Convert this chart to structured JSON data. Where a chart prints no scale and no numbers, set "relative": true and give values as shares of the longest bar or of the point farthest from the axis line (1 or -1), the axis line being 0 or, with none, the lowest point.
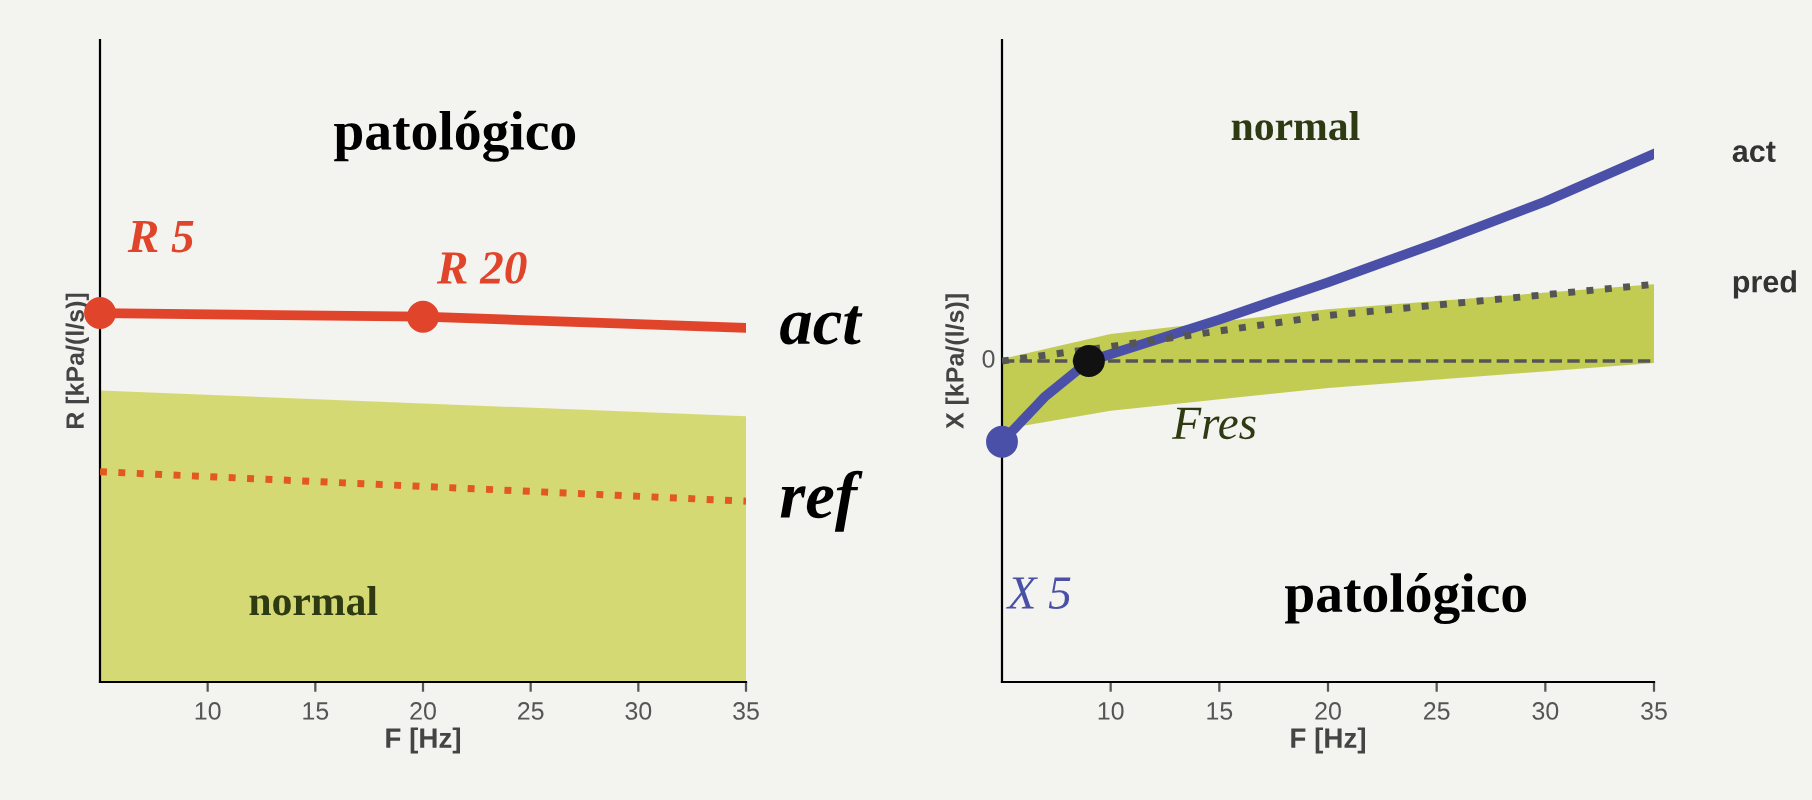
{
  "chart_data": [
    {
      "type": "line",
      "relative": true,
      "xlabel": "F [Hz]",
      "ylabel": "R [kPa/(l/s)]",
      "xlim": [
        5,
        35
      ],
      "xticks": [
        10,
        15,
        20,
        25,
        30,
        35
      ],
      "legend": false,
      "grid": false,
      "series": [
        {
          "name": "act",
          "color": "#e0452b",
          "x": [
            5,
            20,
            35
          ],
          "values": [
            1,
            0.99,
            0.96
          ],
          "line_style": "solid"
        },
        {
          "name": "ref",
          "color": "#e2581e",
          "x": [
            5,
            35
          ],
          "values": [
            0.57,
            0.49
          ],
          "line_style": "dotted",
          "lower": [
            0,
            0
          ],
          "upper": [
            0.79,
            0.72
          ]
        },
        {
          "type": "scatter",
          "color": "#e0452b",
          "x": [
            5,
            20
          ],
          "values": [
            1,
            0.99
          ],
          "marker": "circle"
        }
      ],
      "annotations": [
        "patológico",
        "normal",
        {
          "text": "R 5",
          "x": 5,
          "y": 1
        },
        {
          "text": "R 20",
          "x": 20,
          "y": 0.99
        }
      ]
    },
    {
      "type": "line",
      "relative": true,
      "xlabel": "F [Hz]",
      "ylabel": "X [kPa/(l/s)]",
      "xlim": [
        5,
        35
      ],
      "xticks": [
        10,
        15,
        20,
        25,
        30,
        35
      ],
      "legend": false,
      "grid": false,
      "ref_lines": [
        {
          "axis": "y",
          "value": 0,
          "label": "0",
          "line_style": "dashed",
          "color": "#555555"
        }
      ],
      "series": [
        {
          "name": "act",
          "color": "#4a4fa8",
          "x": [
            5,
            7,
            9,
            12,
            15,
            20,
            25,
            30,
            35
          ],
          "values": [
            -0.39,
            -0.17,
            0,
            0.1,
            0.2,
            0.38,
            0.57,
            0.77,
            1
          ],
          "line_style": "solid"
        },
        {
          "name": "pred",
          "color": "#555555",
          "x": [
            5,
            10,
            20,
            35
          ],
          "values": [
            0,
            0.07,
            0.22,
            0.37
          ],
          "line_style": "dotted",
          "lower": [
            -0.33,
            -0.24,
            -0.13,
            -0.01
          ],
          "upper": [
            0.01,
            0.13,
            0.25,
            0.37
          ]
        },
        {
          "type": "scatter",
          "color": "#4a4fa8",
          "x": [
            5
          ],
          "values": [
            -0.39
          ],
          "marker": "circle"
        },
        {
          "type": "scatter",
          "color": "#111111",
          "x": [
            9
          ],
          "values": [
            0
          ],
          "marker": "circle"
        }
      ],
      "annotations": [
        "normal",
        "patológico",
        {
          "text": "Fres",
          "x": 9,
          "y": 0
        },
        {
          "text": "X 5",
          "x": 5,
          "y": -0.39
        }
      ]
    }
  ]
}
